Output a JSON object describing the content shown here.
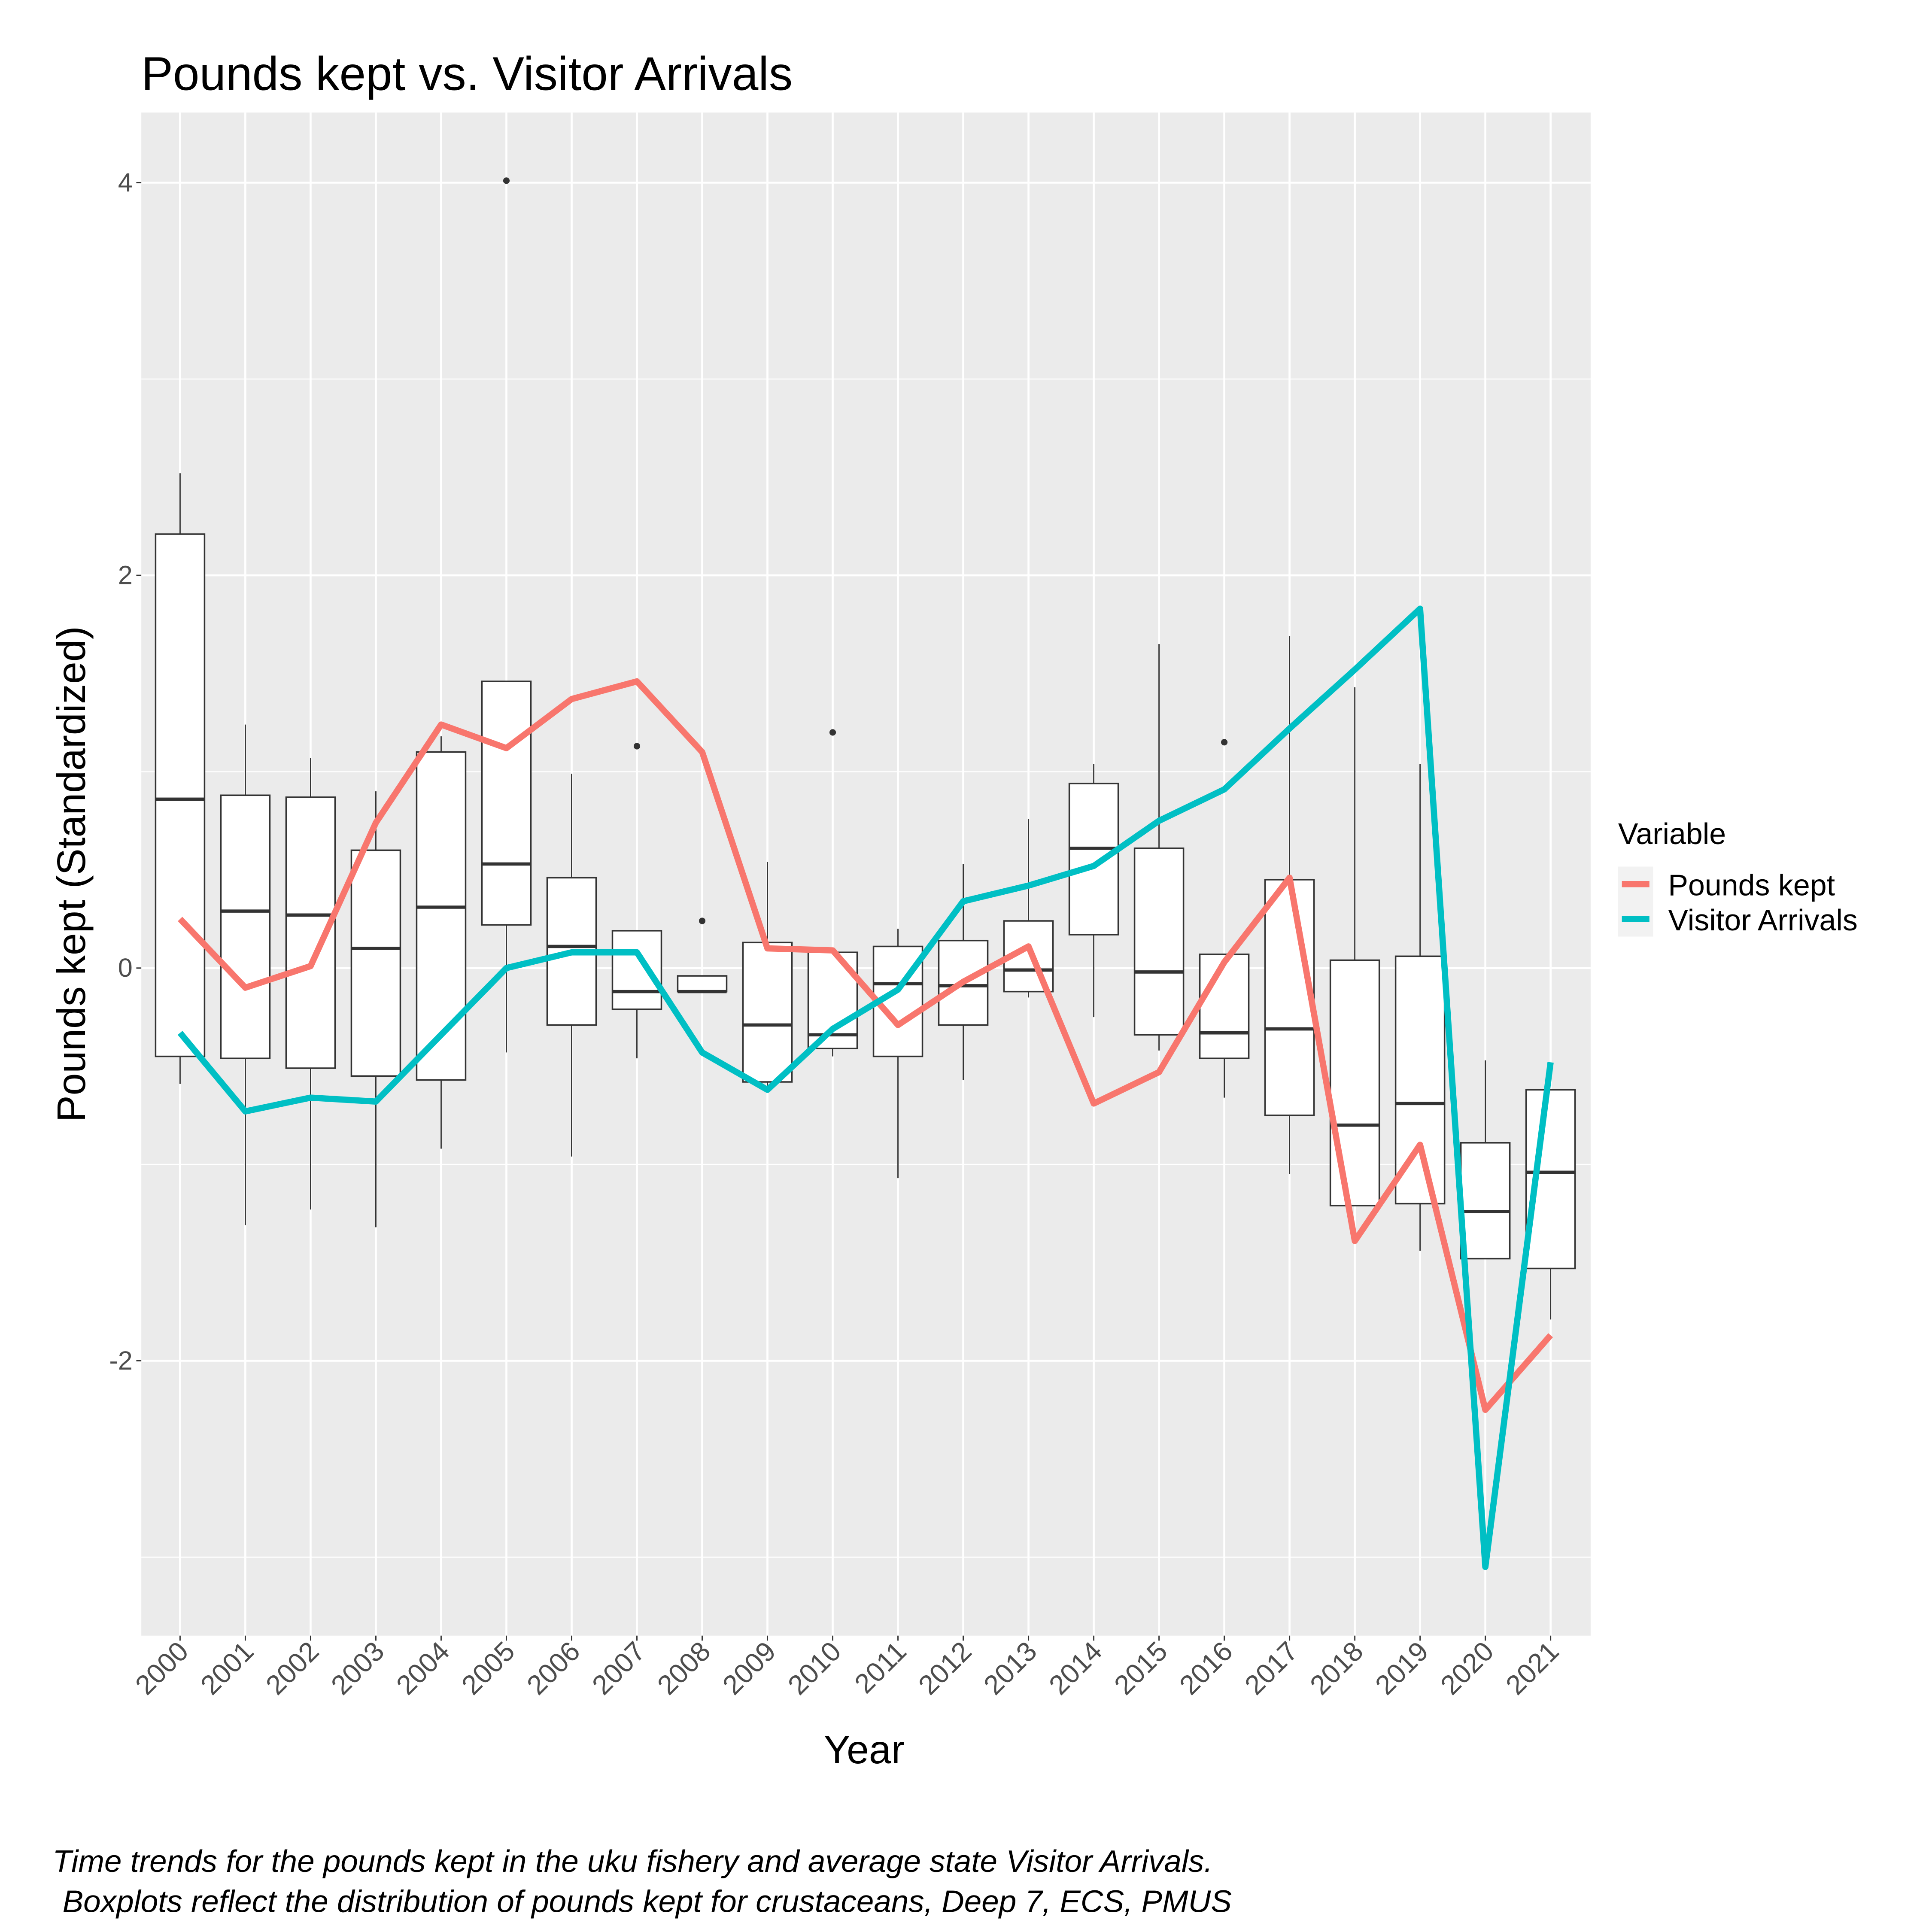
{
  "chart_data": {
    "type": "boxplot",
    "title": "Pounds kept vs. Visitor Arrivals",
    "x_label": "Year",
    "y_label": "Pounds kept (Standardized)",
    "caption": [
      "Time trends for the pounds kept in the uku fishery and average state Visitor Arrivals.",
      "Boxplots reflect the distribution of pounds kept for crustaceans, Deep 7, ECS, PMUS"
    ],
    "legend_title": "Variable",
    "legend_position": "right",
    "grid": true,
    "panel_color": "#ebebeb",
    "box_color": "#333333",
    "ylim": [
      -3.4,
      4.357
    ],
    "yticks": [
      -2,
      0,
      2,
      4
    ],
    "categories": [
      "2000",
      "2001",
      "2002",
      "2003",
      "2004",
      "2005",
      "2006",
      "2007",
      "2008",
      "2009",
      "2010",
      "2011",
      "2012",
      "2013",
      "2014",
      "2015",
      "2016",
      "2017",
      "2018",
      "2019",
      "2020",
      "2021"
    ],
    "boxes": [
      {
        "low": -0.59,
        "q1": -0.45,
        "median": 0.86,
        "q3": 2.21,
        "high": 2.52
      },
      {
        "low": -1.31,
        "q1": -0.46,
        "median": 0.29,
        "q3": 0.88,
        "high": 1.24
      },
      {
        "low": -1.23,
        "q1": -0.51,
        "median": 0.27,
        "q3": 0.87,
        "high": 1.07
      },
      {
        "low": -1.32,
        "q1": -0.55,
        "median": 0.1,
        "q3": 0.6,
        "high": 0.9
      },
      {
        "low": -0.92,
        "q1": -0.57,
        "median": 0.31,
        "q3": 1.1,
        "high": 1.18
      },
      {
        "low": -0.43,
        "q1": 0.22,
        "median": 0.53,
        "q3": 1.46,
        "high": 1.46,
        "outliers": [
          4.01
        ]
      },
      {
        "low": -0.96,
        "q1": -0.29,
        "median": 0.11,
        "q3": 0.46,
        "high": 0.99
      },
      {
        "low": -0.46,
        "q1": -0.21,
        "median": -0.12,
        "q3": 0.19,
        "high": 0.19,
        "outliers": [
          1.13
        ]
      },
      {
        "low": -0.12,
        "q1": -0.12,
        "median": -0.12,
        "q3": -0.04,
        "high": -0.04,
        "outliers": [
          0.24
        ]
      },
      {
        "low": -0.6,
        "q1": -0.58,
        "median": -0.29,
        "q3": 0.13,
        "high": 0.54
      },
      {
        "low": -0.45,
        "q1": -0.41,
        "median": -0.34,
        "q3": 0.08,
        "high": 0.08,
        "outliers": [
          1.2
        ]
      },
      {
        "low": -1.07,
        "q1": -0.45,
        "median": -0.08,
        "q3": 0.11,
        "high": 0.2
      },
      {
        "low": -0.57,
        "q1": -0.29,
        "median": -0.09,
        "q3": 0.14,
        "high": 0.53
      },
      {
        "low": -0.15,
        "q1": -0.12,
        "median": -0.01,
        "q3": 0.24,
        "high": 0.76
      },
      {
        "low": -0.25,
        "q1": 0.17,
        "median": 0.61,
        "q3": 0.94,
        "high": 1.04
      },
      {
        "low": -0.42,
        "q1": -0.34,
        "median": -0.02,
        "q3": 0.61,
        "high": 1.65
      },
      {
        "low": -0.66,
        "q1": -0.46,
        "median": -0.33,
        "q3": 0.07,
        "high": 0.07,
        "outliers": [
          1.15
        ]
      },
      {
        "low": -1.05,
        "q1": -0.75,
        "median": -0.31,
        "q3": 0.45,
        "high": 1.69
      },
      {
        "low": -1.21,
        "q1": -1.21,
        "median": -0.8,
        "q3": 0.04,
        "high": 1.43
      },
      {
        "low": -1.44,
        "q1": -1.2,
        "median": -0.69,
        "q3": 0.06,
        "high": 1.04
      },
      {
        "low": -1.48,
        "q1": -1.48,
        "median": -1.24,
        "q3": -0.89,
        "high": -0.47
      },
      {
        "low": -1.79,
        "q1": -1.53,
        "median": -1.04,
        "q3": -0.62,
        "high": -0.62
      }
    ],
    "series": [
      {
        "name": "Pounds kept",
        "color": "#f8766d",
        "values": [
          0.25,
          -0.1,
          0.01,
          0.74,
          1.24,
          1.12,
          1.37,
          1.46,
          1.1,
          0.1,
          0.09,
          -0.29,
          -0.07,
          0.11,
          -0.69,
          -0.53,
          0.03,
          0.46,
          -1.39,
          -0.9,
          -2.25,
          -1.87
        ]
      },
      {
        "name": "Visitor Arrivals",
        "color": "#00bfc4",
        "values": [
          -0.33,
          -0.73,
          -0.66,
          -0.68,
          -0.34,
          0,
          0.08,
          0.08,
          -0.43,
          -0.62,
          -0.31,
          -0.11,
          0.34,
          0.42,
          0.52,
          0.75,
          0.91,
          1.22,
          1.52,
          1.83,
          -3.05,
          -0.48
        ]
      }
    ]
  }
}
